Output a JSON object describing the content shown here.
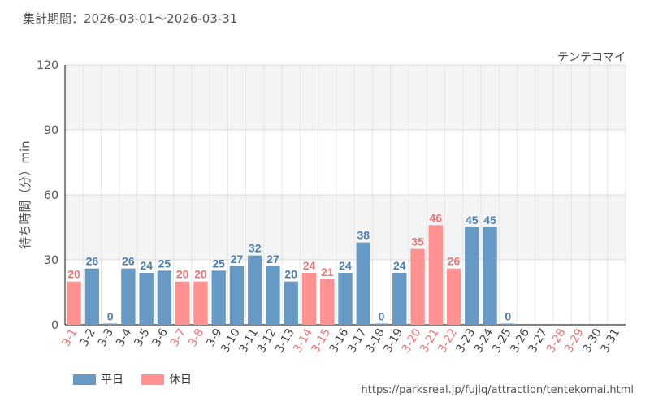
{
  "header": {
    "period_text": "集計期間：2026-03-01～2026-03-31"
  },
  "colors": {
    "weekday": "#6699c4",
    "holiday": "#ff9191",
    "weekday_label": "#4a7fb0",
    "holiday_label": "#f27373",
    "axis_text": "#555555"
  },
  "legend": {
    "weekday_label": "平日",
    "holiday_label": "休日"
  },
  "footer": {
    "source_url": "https://parksreal.jp/fujiq/attraction/tentekomai.html"
  },
  "chart_data": {
    "type": "bar",
    "title": "テンテコマイ",
    "xlabel": "",
    "ylabel": "待ち時間（分）min",
    "ylim": [
      0,
      120
    ],
    "yticks": [
      0,
      30,
      60,
      90,
      120
    ],
    "grid": true,
    "legend_position": "bottom-left",
    "categories": [
      "3-1",
      "3-2",
      "3-3",
      "3-4",
      "3-5",
      "3-6",
      "3-7",
      "3-8",
      "3-9",
      "3-10",
      "3-11",
      "3-12",
      "3-13",
      "3-14",
      "3-15",
      "3-16",
      "3-17",
      "3-18",
      "3-19",
      "3-20",
      "3-21",
      "3-22",
      "3-23",
      "3-24",
      "3-25",
      "3-26",
      "3-27",
      "3-28",
      "3-29",
      "3-30",
      "3-31"
    ],
    "values": [
      20,
      26,
      0,
      26,
      24,
      25,
      20,
      20,
      25,
      27,
      32,
      27,
      20,
      24,
      21,
      24,
      38,
      0,
      24,
      35,
      46,
      26,
      45,
      45,
      0,
      null,
      null,
      null,
      null,
      null,
      null
    ],
    "day_type": [
      "holiday",
      "weekday",
      "weekday",
      "weekday",
      "weekday",
      "weekday",
      "holiday",
      "holiday",
      "weekday",
      "weekday",
      "weekday",
      "weekday",
      "weekday",
      "holiday",
      "holiday",
      "weekday",
      "weekday",
      "weekday",
      "weekday",
      "holiday",
      "holiday",
      "holiday",
      "weekday",
      "weekday",
      "weekday",
      "weekday",
      "weekday",
      "holiday",
      "holiday",
      "weekday",
      "weekday"
    ],
    "series": [
      {
        "name": "平日"
      },
      {
        "name": "休日"
      }
    ]
  }
}
